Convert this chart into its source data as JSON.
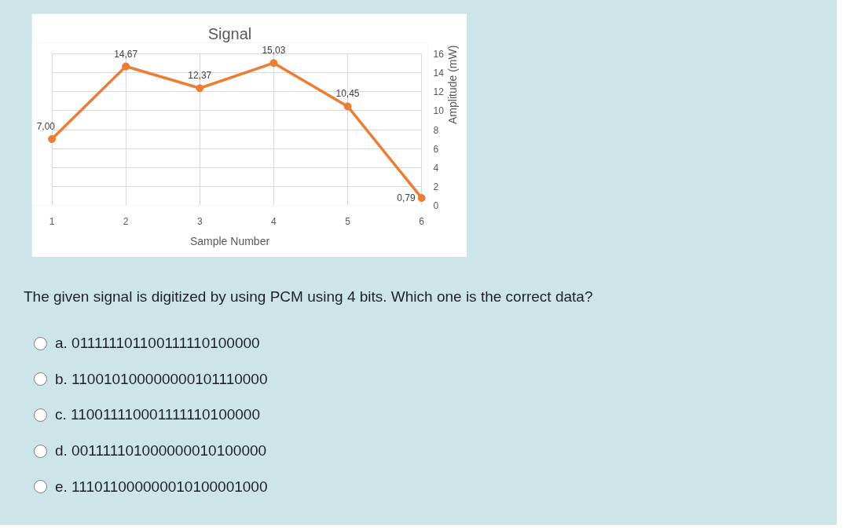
{
  "chart_data": {
    "type": "line",
    "title": "Signal",
    "xlabel": "Sample Number",
    "ylabel": "Amplitude (mW)",
    "x": [
      1,
      2,
      3,
      4,
      5,
      6
    ],
    "values": [
      7.0,
      14.67,
      12.37,
      15.03,
      10.45,
      0.79
    ],
    "color": "#ed7d31",
    "value_labels": [
      "7,00",
      "14,67",
      "12,37",
      "15,03",
      "10,45",
      "0,79"
    ],
    "xlim": [
      1,
      6
    ],
    "xticks": [
      1,
      2,
      3,
      4,
      5,
      6
    ],
    "ylim": [
      0,
      16
    ],
    "yticks": [
      0,
      2,
      4,
      6,
      8,
      10,
      12,
      14,
      16
    ],
    "grid": true,
    "marker": "circle",
    "line_style": "solid",
    "annotations": [
      "The given signal is digitized by using PCM using 4 bits. Which one is the correct data?",
      "a. 011111101100111110100000",
      "b. 110010100000000101110000",
      "c. 110011110001111110100000",
      "d. 001111101000000010100000",
      "e. 111011000000010100001000"
    ]
  }
}
